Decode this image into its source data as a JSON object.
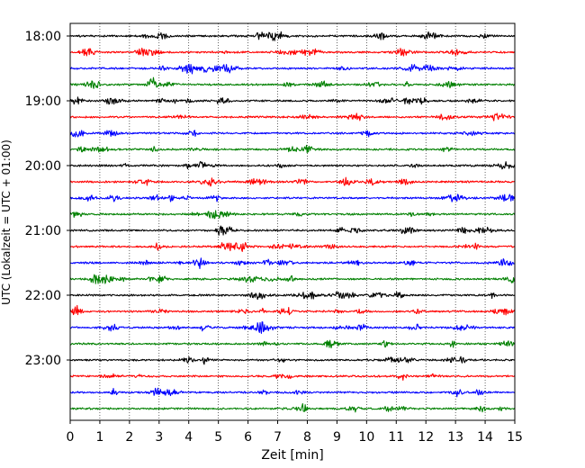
{
  "chart_data": {
    "type": "line",
    "title": "",
    "xlabel": "Zeit  [min]",
    "ylabel": "UTC (Lokalzeit = UTC + 01:00)",
    "xlim": [
      0,
      15
    ],
    "x_ticks": [
      "0",
      "1",
      "2",
      "3",
      "4",
      "5",
      "6",
      "7",
      "8",
      "9",
      "10",
      "11",
      "12",
      "13",
      "14",
      "15"
    ],
    "y_ticks": [
      "18:00",
      "19:00",
      "20:00",
      "21:00",
      "22:00",
      "23:00"
    ],
    "vertical_grid": true,
    "grid_style": "dotted",
    "trace_interval_minutes": 15,
    "trace_colors": [
      "#000000",
      "#ff0000",
      "#0000ff",
      "#008000"
    ],
    "trace_start_times": [
      "18:00",
      "18:15",
      "18:30",
      "18:45",
      "19:00",
      "19:15",
      "19:30",
      "19:45",
      "20:00",
      "20:15",
      "20:30",
      "20:45",
      "21:00",
      "21:15",
      "21:30",
      "21:45",
      "22:00",
      "22:15",
      "22:30",
      "22:45",
      "23:00",
      "23:15",
      "23:30",
      "23:45"
    ]
  }
}
